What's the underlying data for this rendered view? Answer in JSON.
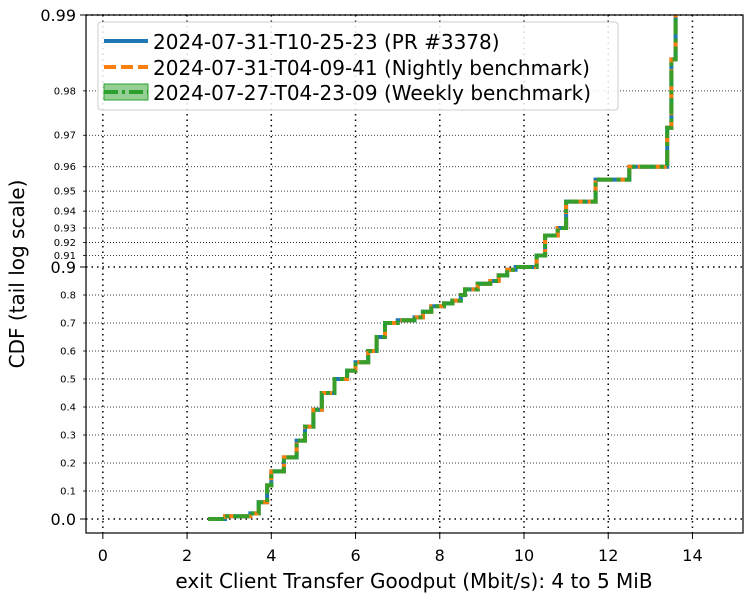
{
  "chart_data": {
    "type": "line",
    "xlabel": "exit Client Transfer Goodput (Mbit/s): 4 to 5 MiB",
    "ylabel": "CDF (tail log scale)",
    "xlim": [
      -0.4,
      15.2
    ],
    "x_ticks": [
      0,
      2,
      4,
      6,
      8,
      10,
      12,
      14
    ],
    "x_tick_labels": [
      "0",
      "2",
      "4",
      "6",
      "8",
      "10",
      "12",
      "14"
    ],
    "y_scale": "tail-log",
    "y_major_ticks": [
      0.0,
      0.9,
      0.99
    ],
    "y_major_labels": [
      "0.0",
      "0.9",
      "0.99"
    ],
    "y_minor_ticks": [
      0.1,
      0.2,
      0.3,
      0.4,
      0.5,
      0.6,
      0.7,
      0.8,
      0.91,
      0.92,
      0.93,
      0.94,
      0.95,
      0.96,
      0.97,
      0.98
    ],
    "y_minor_labels": [
      "0.1",
      "0.2",
      "0.3",
      "0.4",
      "0.5",
      "0.6",
      "0.7",
      "0.8",
      "0.91",
      "0.92",
      "0.93",
      "0.94",
      "0.95",
      "0.96",
      "0.97",
      "0.98"
    ],
    "grid": true,
    "legend_position": "top-left",
    "legend": [
      {
        "label": "2024-07-31-T10-25-23 (PR #3378)",
        "color": "#1f77b4",
        "style": "solid"
      },
      {
        "label": "2024-07-31-T04-09-41 (Nightly benchmark)",
        "color": "#ff7f0e",
        "style": "dashed"
      },
      {
        "label": "2024-07-27-T04-23-09 (Weekly benchmark)",
        "color": "#2ca02c",
        "style": "dash-dot"
      }
    ],
    "series_points": [
      [
        2.5,
        0.0
      ],
      [
        2.9,
        0.01
      ],
      [
        3.5,
        0.02
      ],
      [
        3.7,
        0.06
      ],
      [
        3.9,
        0.12
      ],
      [
        4.0,
        0.17
      ],
      [
        4.3,
        0.22
      ],
      [
        4.6,
        0.28
      ],
      [
        4.8,
        0.33
      ],
      [
        5.0,
        0.39
      ],
      [
        5.2,
        0.45
      ],
      [
        5.5,
        0.5
      ],
      [
        5.8,
        0.53
      ],
      [
        6.0,
        0.56
      ],
      [
        6.3,
        0.6
      ],
      [
        6.5,
        0.65
      ],
      [
        6.7,
        0.7
      ],
      [
        7.0,
        0.71
      ],
      [
        7.4,
        0.72
      ],
      [
        7.6,
        0.74
      ],
      [
        7.8,
        0.76
      ],
      [
        8.1,
        0.77
      ],
      [
        8.3,
        0.78
      ],
      [
        8.5,
        0.8
      ],
      [
        8.6,
        0.82
      ],
      [
        8.9,
        0.84
      ],
      [
        9.2,
        0.85
      ],
      [
        9.4,
        0.87
      ],
      [
        9.6,
        0.89
      ],
      [
        9.8,
        0.9
      ],
      [
        10.3,
        0.91
      ],
      [
        10.5,
        0.925
      ],
      [
        10.8,
        0.93
      ],
      [
        11.0,
        0.945
      ],
      [
        11.7,
        0.955
      ],
      [
        12.5,
        0.96
      ],
      [
        13.3,
        0.96
      ],
      [
        13.4,
        0.972
      ],
      [
        13.5,
        0.985
      ],
      [
        13.6,
        0.99
      ]
    ]
  }
}
